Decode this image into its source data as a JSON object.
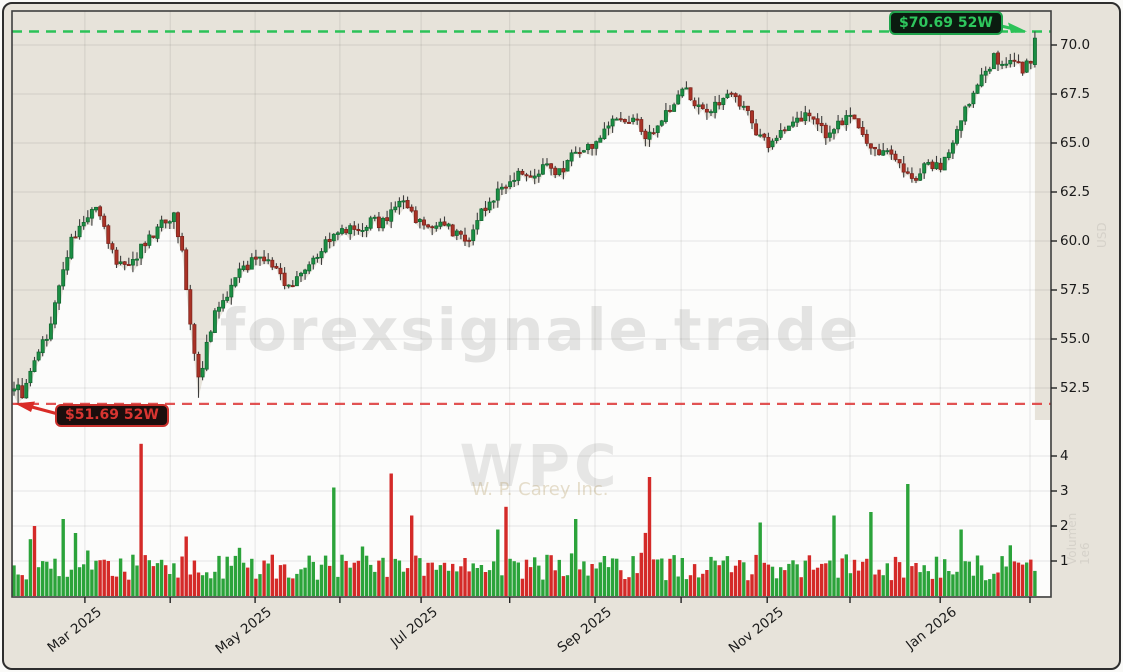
{
  "annotations": {
    "high_badge": "$70.69 52W",
    "low_badge": "$51.69 52W"
  },
  "watermarks": {
    "site": "forexsignale.trade",
    "symbol": "WPC",
    "company": "W. P. Carey Inc.",
    "volume_axis_note": "Volumen",
    "volume_axis_scale": "1e6",
    "price_axis_note": "USD"
  },
  "price_axis": {
    "ticks": [
      {
        "label": "70.0",
        "value": 70.0
      },
      {
        "label": "67.5",
        "value": 67.5
      },
      {
        "label": "65.0",
        "value": 65.0
      },
      {
        "label": "62.5",
        "value": 62.5
      },
      {
        "label": "60.0",
        "value": 60.0
      },
      {
        "label": "57.5",
        "value": 57.5
      },
      {
        "label": "55.0",
        "value": 55.0
      },
      {
        "label": "52.5",
        "value": 52.5
      }
    ]
  },
  "volume_axis": {
    "ticks": [
      {
        "label": "4",
        "value": 4
      },
      {
        "label": "3",
        "value": 3
      },
      {
        "label": "2",
        "value": 2
      },
      {
        "label": "1",
        "value": 1
      }
    ]
  },
  "x_axis": {
    "major": [
      {
        "label": "Mar 2025",
        "idx": 17.3
      },
      {
        "label": "May 2025",
        "idx": 58.8
      },
      {
        "label": "Jul 2025",
        "idx": 99.3
      },
      {
        "label": "Sep 2025",
        "idx": 141.7
      },
      {
        "label": "Nov 2025",
        "idx": 183.7
      },
      {
        "label": "Jan 2026",
        "idx": 225.9
      }
    ],
    "minor_idx": [
      38.1,
      79.5,
      120.9,
      162.7,
      203.9,
      247.8
    ]
  },
  "chart_data": {
    "type": "candlestick+volume",
    "symbol": "WPC",
    "company": "W. P. Carey Inc.",
    "high_52w": 70.69,
    "low_52w": 51.69,
    "price_range": [
      51.0,
      71.2
    ],
    "volume_range": [
      0,
      5
    ],
    "grid": true,
    "legend": "none",
    "n_candles": 250,
    "price_anchors": [
      [
        0,
        52.6
      ],
      [
        2,
        52.25
      ],
      [
        4,
        53.2
      ],
      [
        8,
        55.2
      ],
      [
        11,
        57.6
      ],
      [
        14,
        60.2
      ],
      [
        17,
        61.0
      ],
      [
        20,
        61.6
      ],
      [
        22,
        60.6
      ],
      [
        25,
        58.9
      ],
      [
        28,
        58.6
      ],
      [
        32,
        59.9
      ],
      [
        36,
        60.8
      ],
      [
        39,
        61.3
      ],
      [
        41,
        59.6
      ],
      [
        43,
        55.6
      ],
      [
        45,
        52.9
      ],
      [
        47,
        54.6
      ],
      [
        49,
        56.2
      ],
      [
        53,
        57.8
      ],
      [
        56,
        58.6
      ],
      [
        60,
        59.3
      ],
      [
        63,
        58.8
      ],
      [
        66,
        57.9
      ],
      [
        68,
        57.7
      ],
      [
        71,
        58.6
      ],
      [
        74,
        59.4
      ],
      [
        77,
        60.1
      ],
      [
        80,
        60.4
      ],
      [
        83,
        60.6
      ],
      [
        87,
        61.0
      ],
      [
        90,
        60.9
      ],
      [
        92,
        61.7
      ],
      [
        95,
        62.2
      ],
      [
        98,
        61.2
      ],
      [
        101,
        60.7
      ],
      [
        105,
        60.9
      ],
      [
        109,
        60.1
      ],
      [
        112,
        60.4
      ],
      [
        114,
        61.5
      ],
      [
        118,
        62.5
      ],
      [
        121,
        63.2
      ],
      [
        124,
        63.6
      ],
      [
        127,
        63.3
      ],
      [
        130,
        63.8
      ],
      [
        133,
        63.5
      ],
      [
        136,
        64.3
      ],
      [
        139,
        64.6
      ],
      [
        142,
        65.0
      ],
      [
        145,
        65.8
      ],
      [
        148,
        66.4
      ],
      [
        151,
        66.2
      ],
      [
        154,
        65.4
      ],
      [
        157,
        65.9
      ],
      [
        160,
        66.8
      ],
      [
        163,
        67.9
      ],
      [
        166,
        67.1
      ],
      [
        169,
        66.5
      ],
      [
        172,
        67.2
      ],
      [
        175,
        67.4
      ],
      [
        178,
        66.9
      ],
      [
        181,
        65.6
      ],
      [
        184,
        64.9
      ],
      [
        187,
        65.6
      ],
      [
        190,
        66.1
      ],
      [
        193,
        66.4
      ],
      [
        196,
        65.8
      ],
      [
        199,
        65.3
      ],
      [
        202,
        66.2
      ],
      [
        205,
        66.4
      ],
      [
        208,
        65.1
      ],
      [
        211,
        64.6
      ],
      [
        214,
        64.3
      ],
      [
        217,
        63.6
      ],
      [
        220,
        63.3
      ],
      [
        223,
        63.9
      ],
      [
        226,
        63.8
      ],
      [
        229,
        65.0
      ],
      [
        231,
        66.3
      ],
      [
        234,
        67.4
      ],
      [
        237,
        68.6
      ],
      [
        239,
        69.3
      ],
      [
        242,
        68.9
      ],
      [
        244,
        69.4
      ],
      [
        246,
        68.8
      ],
      [
        248,
        69.2
      ],
      [
        249,
        70.2
      ]
    ],
    "special_candles": [
      {
        "i": 1,
        "l": 51.69
      },
      {
        "i": 45,
        "l": 52.0
      },
      {
        "i": 249,
        "o": 69.0,
        "c": 70.35,
        "h": 70.69,
        "l": 68.85
      }
    ],
    "volume_spikes": [
      [
        5,
        2.0,
        "r"
      ],
      [
        12,
        2.2,
        "g"
      ],
      [
        15,
        1.8,
        "g"
      ],
      [
        31,
        4.35,
        "r"
      ],
      [
        42,
        1.7,
        "r"
      ],
      [
        78,
        3.1,
        "g"
      ],
      [
        92,
        3.5,
        "r"
      ],
      [
        97,
        2.3,
        "r"
      ],
      [
        118,
        1.9,
        "g"
      ],
      [
        120,
        2.55,
        "r"
      ],
      [
        137,
        2.2,
        "g"
      ],
      [
        155,
        3.4,
        "r"
      ],
      [
        182,
        2.1,
        "g"
      ],
      [
        200,
        2.3,
        "g"
      ],
      [
        209,
        2.4,
        "g"
      ],
      [
        218,
        3.2,
        "g"
      ],
      [
        231,
        1.9,
        "g"
      ]
    ],
    "colors": {
      "candle_up": "#1b8e44",
      "candle_up_edge": "#11632e",
      "candle_down": "#a93226",
      "candle_down_edge": "#78211a",
      "wick": "#3d3d3d",
      "volume_up": "#2ba33a",
      "volume_down": "#d42a28",
      "high_line": "#2cc258",
      "low_line": "#df4040",
      "card_bg": "#e7e3da",
      "plot_white": "#fcfcfb",
      "frame": "#3f3f3f",
      "grid": "rgba(0,0,0,0.09)"
    }
  }
}
